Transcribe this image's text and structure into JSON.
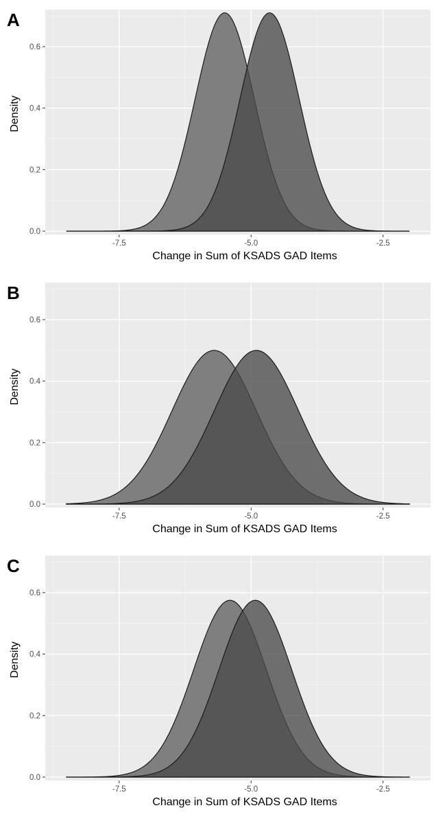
{
  "chart_data": [
    {
      "panel": "A",
      "type": "area",
      "xlabel": "Change in Sum of KSADS GAD Items",
      "ylabel": "Density",
      "xlim": [
        -8.9,
        -1.6
      ],
      "ylim": [
        0,
        0.71
      ],
      "x_ticks": [
        -7.5,
        -5.0,
        -2.5
      ],
      "x_tick_labels": [
        "-7.5",
        "-5.0",
        "-2.5"
      ],
      "y_ticks": [
        0.0,
        0.2,
        0.4,
        0.6
      ],
      "y_tick_labels": [
        "0.0",
        "0.2",
        "0.4",
        "0.6"
      ],
      "grid": true,
      "series": [
        {
          "mean": -5.5,
          "sd": 0.56,
          "peak": 0.71,
          "color": "#7f7f7f"
        },
        {
          "mean": -4.65,
          "sd": 0.56,
          "peak": 0.71,
          "color": "#4a4a4a"
        }
      ]
    },
    {
      "panel": "B",
      "type": "area",
      "xlabel": "Change in Sum of KSADS GAD Items",
      "ylabel": "Density",
      "xlim": [
        -8.9,
        -1.6
      ],
      "ylim": [
        0,
        0.71
      ],
      "x_ticks": [
        -7.5,
        -5.0,
        -2.5
      ],
      "x_tick_labels": [
        "-7.5",
        "-5.0",
        "-2.5"
      ],
      "y_ticks": [
        0.0,
        0.2,
        0.4,
        0.6
      ],
      "y_tick_labels": [
        "0.0",
        "0.2",
        "0.4",
        "0.6"
      ],
      "grid": true,
      "series": [
        {
          "mean": -5.7,
          "sd": 0.8,
          "peak": 0.5,
          "color": "#7f7f7f"
        },
        {
          "mean": -4.9,
          "sd": 0.8,
          "peak": 0.5,
          "color": "#4a4a4a"
        }
      ]
    },
    {
      "panel": "C",
      "type": "area",
      "xlabel": "Change in Sum of KSADS GAD Items",
      "ylabel": "Density",
      "xlim": [
        -8.9,
        -1.6
      ],
      "ylim": [
        0,
        0.71
      ],
      "x_ticks": [
        -7.5,
        -5.0,
        -2.5
      ],
      "x_tick_labels": [
        "-7.5",
        "-5.0",
        "-2.5"
      ],
      "y_ticks": [
        0.0,
        0.2,
        0.4,
        0.6
      ],
      "y_tick_labels": [
        "0.0",
        "0.2",
        "0.4",
        "0.6"
      ],
      "grid": true,
      "series": [
        {
          "mean": -5.4,
          "sd": 0.69,
          "peak": 0.575,
          "color": "#7f7f7f"
        },
        {
          "mean": -4.92,
          "sd": 0.69,
          "peak": 0.575,
          "color": "#4a4a4a"
        }
      ]
    }
  ]
}
